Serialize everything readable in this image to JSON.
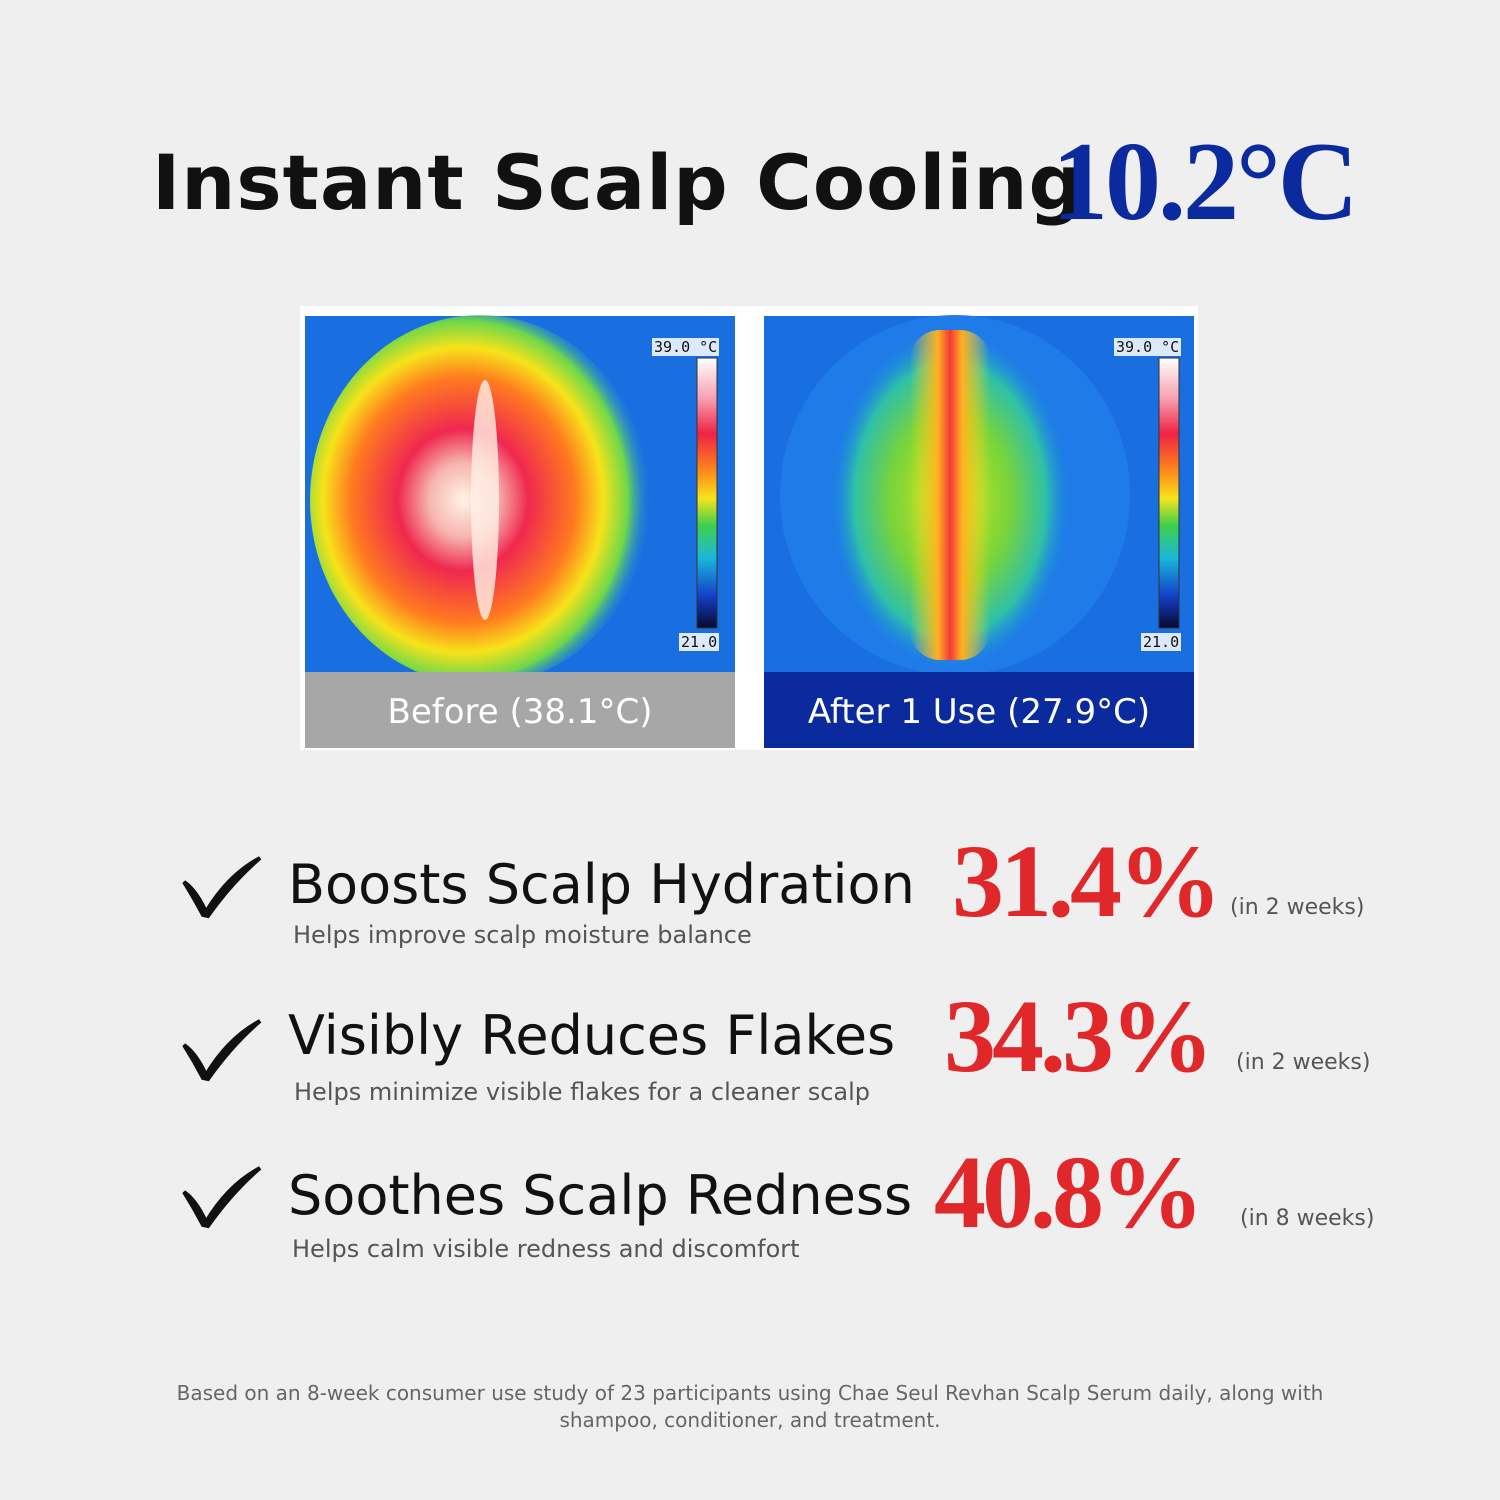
{
  "header": {
    "title": "Instant Scalp Cooling",
    "highlight": "10.2°C"
  },
  "images": [
    {
      "caption": "Before (38.1°C)",
      "scale_max": "39.0 °C",
      "scale_min": "21.0"
    },
    {
      "caption": "After 1 Use (27.9°C)",
      "scale_max": "39.0 °C",
      "scale_min": "21.0"
    }
  ],
  "benefits": [
    {
      "title": "Boosts Scalp Hydration",
      "subtitle": "Helps improve scalp moisture balance",
      "stat": "31.4%",
      "period": "(in 2 weeks)"
    },
    {
      "title": "Visibly Reduces Flakes",
      "subtitle": "Helps minimize visible flakes for a cleaner scalp",
      "stat": "34.3%",
      "period": "(in 2 weeks)"
    },
    {
      "title": "Soothes Scalp Redness",
      "subtitle": "Helps calm visible redness and discomfort",
      "stat": "40.8%",
      "period": "(in 8 weeks)"
    }
  ],
  "footnote": "Based on an 8-week consumer use study of 23 participants using Chae Seul Revhan Scalp Serum daily, along with shampoo, conditioner, and treatment."
}
